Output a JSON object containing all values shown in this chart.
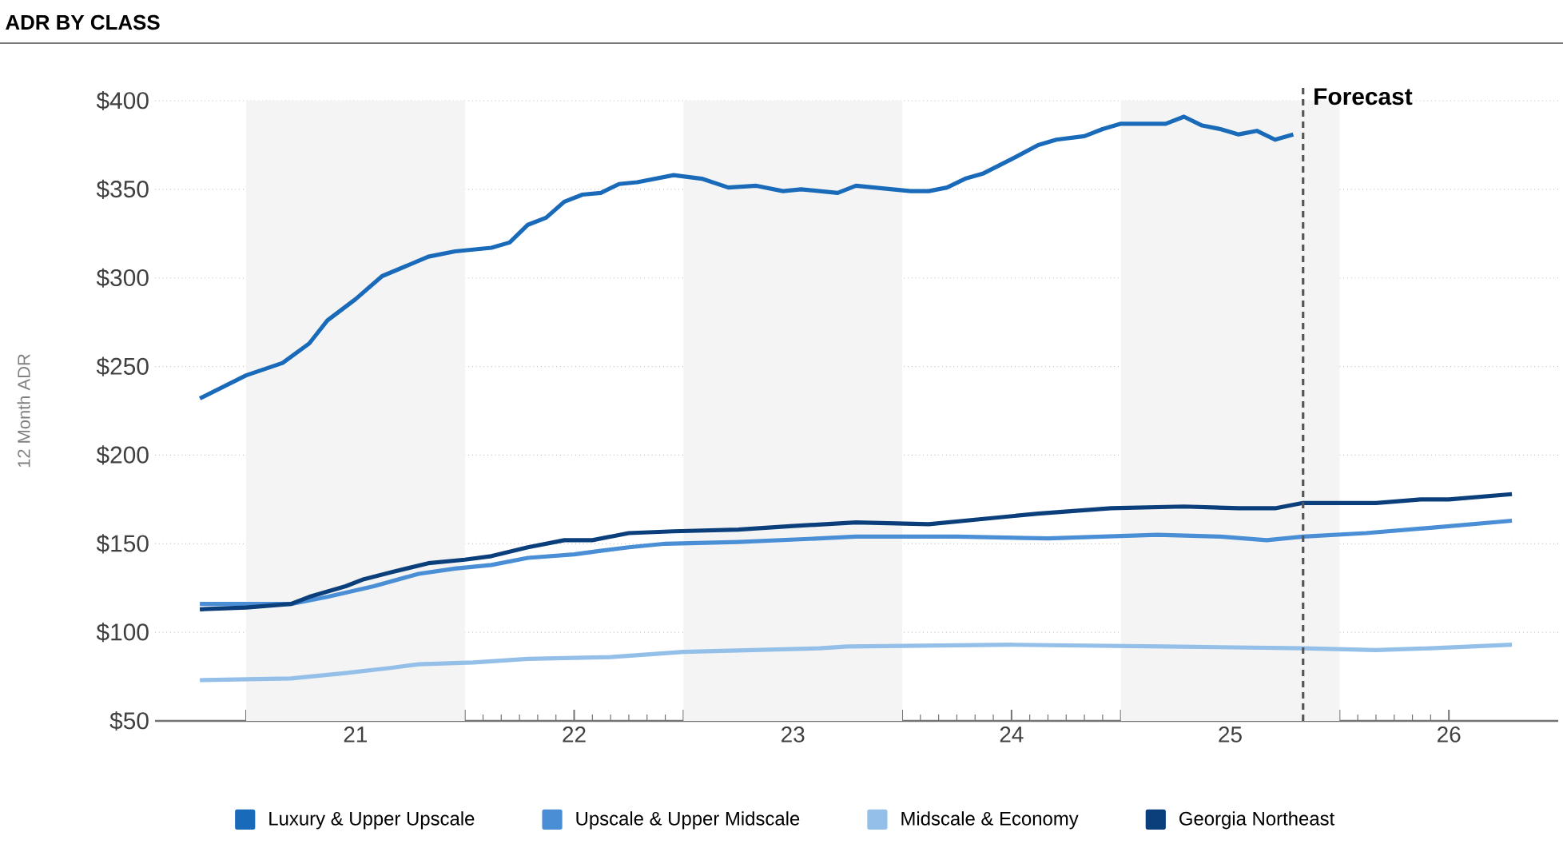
{
  "chart_data": {
    "type": "line",
    "title": "ADR BY CLASS",
    "ylabel": "12 Month ADR",
    "xlim": [
      "2020-08-01",
      "2027-01-01"
    ],
    "xticks": [
      {
        "value": "2021-01-01",
        "label": null
      },
      {
        "value": "2021-07-01",
        "label": "21"
      },
      {
        "value": "2022-01-01",
        "label": null
      },
      {
        "value": "2022-07-01",
        "label": "22"
      },
      {
        "value": "2023-01-01",
        "label": null
      },
      {
        "value": "2023-07-01",
        "label": "23"
      },
      {
        "value": "2024-01-01",
        "label": null
      },
      {
        "value": "2024-07-01",
        "label": "24"
      },
      {
        "value": "2025-01-01",
        "label": null
      },
      {
        "value": "2025-07-01",
        "label": "25"
      },
      {
        "value": "2026-01-01",
        "label": null
      },
      {
        "value": "2026-07-01",
        "label": "26"
      }
    ],
    "ylim": [
      50,
      400
    ],
    "yticks": [
      {
        "value": 50,
        "label": "$50"
      },
      {
        "value": 100,
        "label": "$100"
      },
      {
        "value": 150,
        "label": "$150"
      },
      {
        "value": 200,
        "label": "$200"
      },
      {
        "value": 250,
        "label": "$250"
      },
      {
        "value": 300,
        "label": "$300"
      },
      {
        "value": 350,
        "label": "$350"
      },
      {
        "value": 400,
        "label": "$400"
      }
    ],
    "grid": "y",
    "legend": "bottom",
    "bands": [
      {
        "axis": "x",
        "from": "2021-01-01",
        "to": "2022-01-01",
        "color": "#f4f4f4"
      },
      {
        "axis": "x",
        "from": "2023-01-01",
        "to": "2024-01-01",
        "color": "#f4f4f4"
      },
      {
        "axis": "x",
        "from": "2025-01-01",
        "to": "2026-01-01",
        "color": "#f4f4f4"
      }
    ],
    "ref_lines": [
      {
        "axis": "x",
        "value": "2025-11-01",
        "label": "Forecast",
        "color": "#555555",
        "line_style": "dashed"
      }
    ],
    "series": [
      {
        "name": "Luxury & Upper Upscale",
        "color": "#1a6aba",
        "x": [
          "2020-10-15",
          "2021-01-01",
          "2021-03-01",
          "2021-04-15",
          "2021-05-15",
          "2021-07-01",
          "2021-08-15",
          "2021-11-01",
          "2021-12-15",
          "2022-02-15",
          "2022-03-15",
          "2022-04-15",
          "2022-05-15",
          "2022-06-15",
          "2022-07-15",
          "2022-08-15",
          "2022-09-15",
          "2022-10-15",
          "2022-12-15",
          "2023-02-01",
          "2023-03-15",
          "2023-05-01",
          "2023-06-15",
          "2023-07-15",
          "2023-09-15",
          "2023-10-15",
          "2024-01-15",
          "2024-02-15",
          "2024-03-15",
          "2024-04-15",
          "2024-05-15",
          "2024-07-01",
          "2024-08-15",
          "2024-09-15",
          "2024-11-01",
          "2024-12-01",
          "2025-01-01",
          "2025-03-15",
          "2025-04-15",
          "2025-05-15",
          "2025-06-15",
          "2025-07-15",
          "2025-08-15",
          "2025-09-15",
          "2025-10-15"
        ],
        "values": [
          232,
          245,
          252,
          263,
          276,
          288,
          301,
          312,
          315,
          317,
          320,
          330,
          334,
          343,
          347,
          348,
          353,
          354,
          358,
          356,
          351,
          352,
          349,
          350,
          348,
          352,
          349,
          349,
          351,
          356,
          359,
          367,
          375,
          378,
          380,
          384,
          387,
          387,
          391,
          386,
          384,
          381,
          383,
          378,
          381
        ]
      },
      {
        "name": "Upscale & Upper Midscale",
        "color": "#4a8fd6",
        "x": [
          "2020-10-15",
          "2021-01-01",
          "2021-03-15",
          "2021-05-15",
          "2021-08-01",
          "2021-10-15",
          "2021-12-15",
          "2022-02-15",
          "2022-04-15",
          "2022-07-01",
          "2022-08-15",
          "2022-10-01",
          "2022-12-01",
          "2023-04-01",
          "2023-08-15",
          "2023-10-15",
          "2024-04-01",
          "2024-09-01",
          "2025-03-01",
          "2025-06-15",
          "2025-09-01",
          "2025-11-01",
          "2026-02-15",
          "2026-06-01",
          "2026-10-15"
        ],
        "values": [
          116,
          116,
          116,
          120,
          126,
          133,
          136,
          138,
          142,
          144,
          146,
          148,
          150,
          151,
          153,
          154,
          154,
          153,
          155,
          154,
          152,
          154,
          156,
          159,
          163
        ]
      },
      {
        "name": "Midscale & Economy",
        "color": "#93bfe8",
        "x": [
          "2020-10-15",
          "2021-03-15",
          "2021-06-15",
          "2021-09-01",
          "2021-10-15",
          "2022-01-15",
          "2022-04-15",
          "2022-09-01",
          "2023-01-01",
          "2023-08-15",
          "2023-10-01",
          "2024-07-01",
          "2025-03-15",
          "2025-11-01",
          "2026-03-01",
          "2026-06-01",
          "2026-10-15"
        ],
        "values": [
          73,
          74,
          77,
          80,
          82,
          83,
          85,
          86,
          89,
          91,
          92,
          93,
          92,
          91,
          90,
          91,
          93
        ]
      },
      {
        "name": "Georgia Northeast",
        "color": "#0b3f7c",
        "x": [
          "2020-10-15",
          "2021-01-01",
          "2021-03-15",
          "2021-04-15",
          "2021-06-15",
          "2021-07-15",
          "2021-09-01",
          "2021-11-01",
          "2022-01-01",
          "2022-02-15",
          "2022-04-15",
          "2022-06-15",
          "2022-08-01",
          "2022-10-01",
          "2022-12-15",
          "2023-04-01",
          "2023-07-01",
          "2023-10-15",
          "2024-02-15",
          "2024-05-15",
          "2024-08-15",
          "2024-12-15",
          "2025-04-15",
          "2025-07-15",
          "2025-09-15",
          "2025-11-01",
          "2026-03-01",
          "2026-05-15",
          "2026-07-01",
          "2026-10-15"
        ],
        "values": [
          113,
          114,
          116,
          120,
          126,
          130,
          134,
          139,
          141,
          143,
          148,
          152,
          152,
          156,
          157,
          158,
          160,
          162,
          161,
          164,
          167,
          170,
          171,
          170,
          170,
          173,
          173,
          175,
          175,
          178
        ]
      }
    ]
  }
}
